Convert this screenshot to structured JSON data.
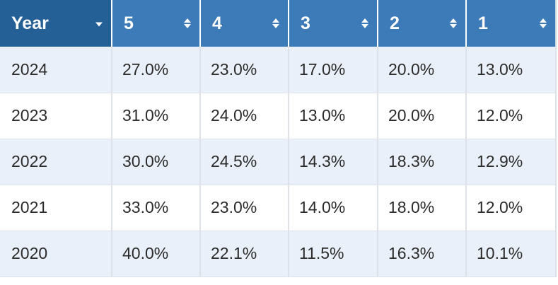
{
  "table": {
    "headers": [
      {
        "label": "Year",
        "control": "dropdown"
      },
      {
        "label": "5",
        "control": "sort"
      },
      {
        "label": "4",
        "control": "sort"
      },
      {
        "label": "3",
        "control": "sort"
      },
      {
        "label": "2",
        "control": "sort"
      },
      {
        "label": "1",
        "control": "sort"
      }
    ],
    "rows": [
      [
        "2024",
        "27.0%",
        "23.0%",
        "17.0%",
        "20.0%",
        "13.0%"
      ],
      [
        "2023",
        "31.0%",
        "24.0%",
        "13.0%",
        "20.0%",
        "12.0%"
      ],
      [
        "2022",
        "30.0%",
        "24.5%",
        "14.3%",
        "18.3%",
        "12.9%"
      ],
      [
        "2021",
        "33.0%",
        "23.0%",
        "14.0%",
        "18.0%",
        "12.0%"
      ],
      [
        "2020",
        "40.0%",
        "22.1%",
        "11.5%",
        "16.3%",
        "10.1%"
      ]
    ]
  },
  "colors": {
    "header_blue": "#3d7ab8",
    "header_active": "#245f96",
    "row_stripe": "#e9f0f9",
    "row_plain": "#ffffff",
    "grid_line": "#dde2e8"
  },
  "icons": {
    "year_header": "caret-down-icon",
    "value_headers": "sort-icon"
  }
}
